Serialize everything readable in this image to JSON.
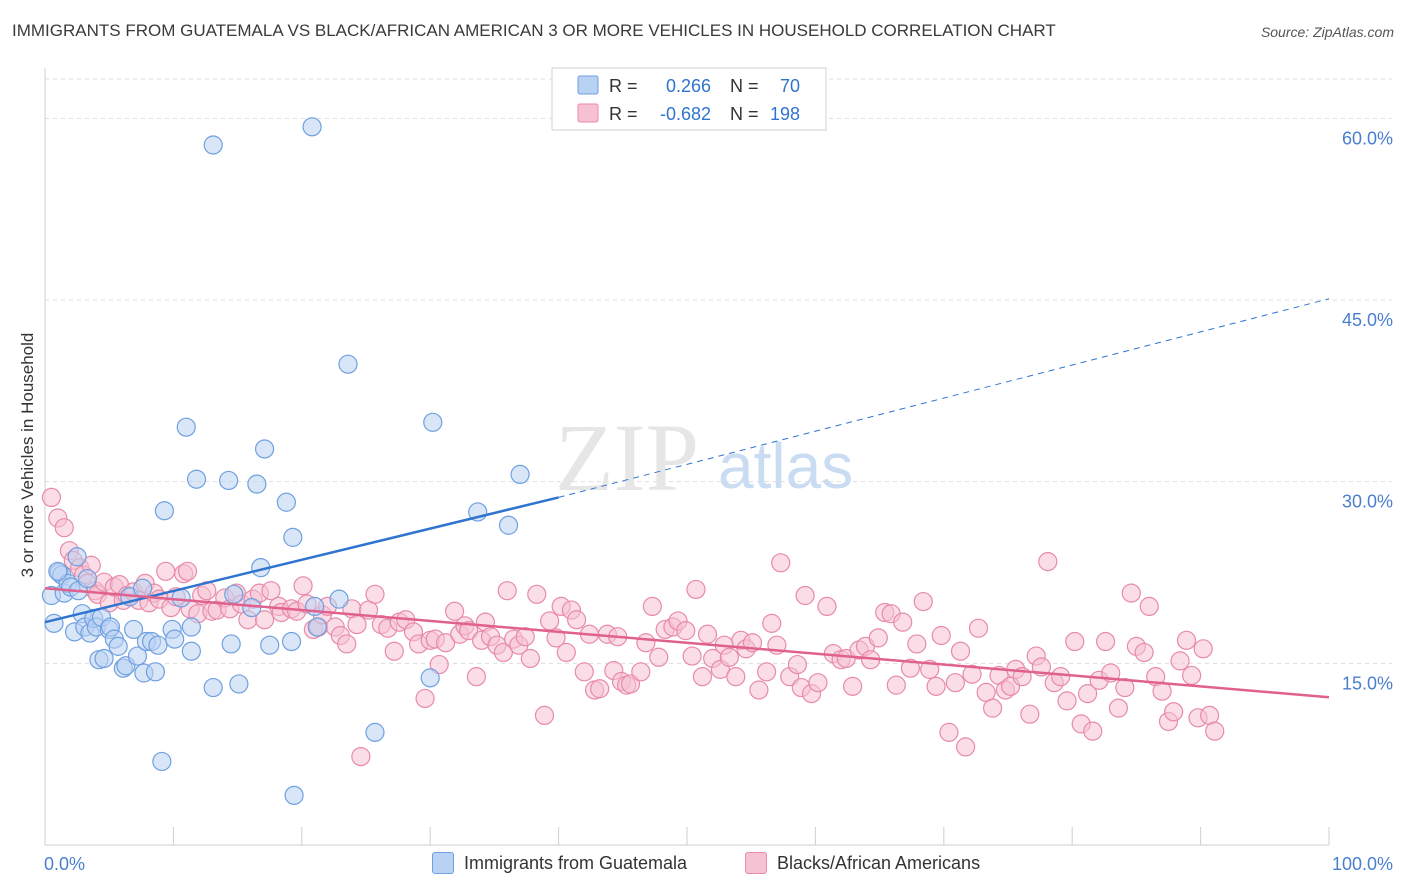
{
  "header": {
    "title": "IMMIGRANTS FROM GUATEMALA VS BLACK/AFRICAN AMERICAN 3 OR MORE VEHICLES IN HOUSEHOLD CORRELATION CHART",
    "source": "Source: ZipAtlas.com"
  },
  "colors": {
    "blue": "#6fa0e0",
    "blue_fill": "#b9d1f3",
    "blue_line": "#2f74cf",
    "pink": "#e88aaa",
    "pink_fill": "#f6c1d3",
    "pink_line": "#e0608e",
    "axis_text": "#4a7fcf",
    "grid": "#dddddd"
  },
  "watermark": {
    "zip": "ZIP",
    "atlas": "atlas"
  },
  "stats_legend": [
    {
      "r_label": "R =",
      "r_value": "0.266",
      "n_label": "N =",
      "n_value": "70"
    },
    {
      "r_label": "R =",
      "r_value": "-0.682",
      "n_label": "N =",
      "n_value": "198"
    }
  ],
  "bottom_legend": [
    {
      "label": "Immigrants from Guatemala"
    },
    {
      "label": "Blacks/African Americans"
    }
  ],
  "chart_data": {
    "type": "scatter",
    "title": "IMMIGRANTS FROM GUATEMALA VS BLACK/AFRICAN AMERICAN 3 OR MORE VEHICLES IN HOUSEHOLD CORRELATION CHART",
    "xlabel": "",
    "ylabel": "3 or more Vehicles in Household",
    "xlim": [
      0,
      100
    ],
    "ylim": [
      0,
      63
    ],
    "x_tick_labels": [
      {
        "value": 0,
        "label": "0.0%"
      },
      {
        "value": 100,
        "label": "100.0%"
      }
    ],
    "y_tick_labels": [
      {
        "value": 15,
        "label": "15.0%"
      },
      {
        "value": 30,
        "label": "30.0%"
      },
      {
        "value": 45,
        "label": "45.0%"
      },
      {
        "value": 60,
        "label": "60.0%"
      }
    ],
    "grid": true,
    "legend_position": "top-center",
    "series": [
      {
        "name": "Immigrants from Guatemala",
        "stats": {
          "R": 0.266,
          "N": 70
        },
        "trend": {
          "x": [
            0,
            40
          ],
          "y": [
            18.4,
            28.7
          ],
          "dashed_to": [
            100,
            45.1
          ]
        },
        "points": [
          [
            0.5,
            20.6
          ],
          [
            0.7,
            18.3
          ],
          [
            1.1,
            22.5
          ],
          [
            1.3,
            22.3
          ],
          [
            1.5,
            20.8
          ],
          [
            1.8,
            21.6
          ],
          [
            2.0,
            21.3
          ],
          [
            2.3,
            17.6
          ],
          [
            2.5,
            23.8
          ],
          [
            2.6,
            21.0
          ],
          [
            2.9,
            19.1
          ],
          [
            3.1,
            18.0
          ],
          [
            3.3,
            22.0
          ],
          [
            3.5,
            17.5
          ],
          [
            3.8,
            18.7
          ],
          [
            4.0,
            18.0
          ],
          [
            4.2,
            15.3
          ],
          [
            4.4,
            18.8
          ],
          [
            4.6,
            15.4
          ],
          [
            5.0,
            17.8
          ],
          [
            5.1,
            18.0
          ],
          [
            5.4,
            17.0
          ],
          [
            5.7,
            16.4
          ],
          [
            6.1,
            14.6
          ],
          [
            6.3,
            14.8
          ],
          [
            6.6,
            20.5
          ],
          [
            6.9,
            17.8
          ],
          [
            7.2,
            15.6
          ],
          [
            7.6,
            21.2
          ],
          [
            7.7,
            14.2
          ],
          [
            7.9,
            16.8
          ],
          [
            8.3,
            16.8
          ],
          [
            8.6,
            14.3
          ],
          [
            8.8,
            16.5
          ],
          [
            9.1,
            6.9
          ],
          [
            9.3,
            27.6
          ],
          [
            9.9,
            17.8
          ],
          [
            10.1,
            17.0
          ],
          [
            10.6,
            20.4
          ],
          [
            11.0,
            34.5
          ],
          [
            11.4,
            16.0
          ],
          [
            11.4,
            18.0
          ],
          [
            11.8,
            30.2
          ],
          [
            13.1,
            57.8
          ],
          [
            14.3,
            30.1
          ],
          [
            14.5,
            16.6
          ],
          [
            14.7,
            20.7
          ],
          [
            15.1,
            13.3
          ],
          [
            16.1,
            19.6
          ],
          [
            16.5,
            29.8
          ],
          [
            16.8,
            22.9
          ],
          [
            17.1,
            32.7
          ],
          [
            17.5,
            16.5
          ],
          [
            18.8,
            28.3
          ],
          [
            19.2,
            16.8
          ],
          [
            19.3,
            25.4
          ],
          [
            19.4,
            4.1
          ],
          [
            20.8,
            59.3
          ],
          [
            21.0,
            19.7
          ],
          [
            21.2,
            18.0
          ],
          [
            22.9,
            20.3
          ],
          [
            23.6,
            39.7
          ],
          [
            25.7,
            9.3
          ],
          [
            30.2,
            34.9
          ],
          [
            30.0,
            13.8
          ],
          [
            33.7,
            27.5
          ],
          [
            36.1,
            26.4
          ],
          [
            37.0,
            30.6
          ],
          [
            1.0,
            22.6
          ],
          [
            13.1,
            13.0
          ]
        ]
      },
      {
        "name": "Blacks/African Americans",
        "stats": {
          "R": -0.682,
          "N": 198
        },
        "trend": {
          "x": [
            0,
            100
          ],
          "y": [
            21.2,
            12.2
          ]
        },
        "points": [
          [
            0.5,
            28.7
          ],
          [
            1.0,
            27.0
          ],
          [
            1.5,
            26.2
          ],
          [
            1.9,
            24.3
          ],
          [
            2.2,
            23.5
          ],
          [
            2.7,
            22.9
          ],
          [
            3.0,
            22.3
          ],
          [
            3.3,
            21.6
          ],
          [
            3.6,
            23.1
          ],
          [
            3.9,
            21.0
          ],
          [
            4.1,
            20.7
          ],
          [
            4.6,
            21.7
          ],
          [
            5.0,
            20.0
          ],
          [
            5.4,
            21.3
          ],
          [
            5.8,
            21.5
          ],
          [
            6.1,
            20.2
          ],
          [
            6.4,
            20.6
          ],
          [
            6.9,
            20.9
          ],
          [
            7.3,
            20.2
          ],
          [
            7.8,
            21.6
          ],
          [
            8.1,
            20.0
          ],
          [
            8.5,
            20.8
          ],
          [
            8.9,
            20.3
          ],
          [
            9.4,
            22.6
          ],
          [
            9.8,
            19.6
          ],
          [
            10.2,
            20.5
          ],
          [
            10.8,
            22.4
          ],
          [
            11.1,
            22.6
          ],
          [
            11.3,
            19.5
          ],
          [
            11.9,
            19.1
          ],
          [
            12.2,
            20.6
          ],
          [
            12.6,
            21.0
          ],
          [
            13.0,
            19.3
          ],
          [
            13.4,
            19.4
          ],
          [
            14.0,
            20.4
          ],
          [
            14.4,
            19.5
          ],
          [
            14.9,
            20.8
          ],
          [
            15.3,
            19.9
          ],
          [
            15.8,
            18.6
          ],
          [
            16.2,
            20.3
          ],
          [
            16.7,
            20.8
          ],
          [
            17.1,
            18.6
          ],
          [
            17.6,
            21.0
          ],
          [
            18.2,
            19.7
          ],
          [
            18.4,
            19.2
          ],
          [
            19.2,
            19.5
          ],
          [
            19.6,
            19.3
          ],
          [
            20.1,
            21.4
          ],
          [
            20.4,
            19.9
          ],
          [
            20.9,
            17.8
          ],
          [
            21.3,
            18.0
          ],
          [
            21.6,
            19.0
          ],
          [
            22.0,
            19.7
          ],
          [
            22.6,
            18.0
          ],
          [
            23.0,
            17.3
          ],
          [
            23.5,
            16.6
          ],
          [
            23.9,
            19.5
          ],
          [
            24.3,
            18.2
          ],
          [
            24.6,
            7.3
          ],
          [
            25.2,
            19.4
          ],
          [
            25.7,
            20.7
          ],
          [
            26.2,
            18.2
          ],
          [
            26.7,
            17.9
          ],
          [
            27.2,
            16.0
          ],
          [
            27.6,
            18.4
          ],
          [
            28.1,
            18.6
          ],
          [
            28.7,
            17.6
          ],
          [
            29.1,
            16.6
          ],
          [
            29.6,
            12.1
          ],
          [
            30.0,
            16.9
          ],
          [
            30.4,
            17.0
          ],
          [
            30.7,
            14.9
          ],
          [
            31.2,
            16.7
          ],
          [
            31.9,
            19.3
          ],
          [
            32.3,
            17.4
          ],
          [
            32.7,
            18.1
          ],
          [
            33.0,
            17.7
          ],
          [
            33.6,
            13.9
          ],
          [
            34.0,
            16.9
          ],
          [
            34.3,
            18.4
          ],
          [
            34.7,
            17.2
          ],
          [
            35.2,
            16.5
          ],
          [
            35.7,
            15.9
          ],
          [
            36.0,
            21.0
          ],
          [
            36.5,
            17.0
          ],
          [
            36.9,
            16.5
          ],
          [
            37.4,
            17.2
          ],
          [
            37.8,
            15.4
          ],
          [
            38.3,
            20.7
          ],
          [
            38.9,
            10.7
          ],
          [
            39.3,
            18.5
          ],
          [
            39.8,
            17.1
          ],
          [
            40.2,
            19.7
          ],
          [
            40.6,
            15.9
          ],
          [
            41.0,
            19.4
          ],
          [
            41.4,
            18.6
          ],
          [
            42.0,
            14.3
          ],
          [
            42.4,
            17.4
          ],
          [
            42.8,
            12.8
          ],
          [
            43.2,
            12.9
          ],
          [
            43.8,
            17.4
          ],
          [
            44.3,
            14.4
          ],
          [
            44.6,
            17.2
          ],
          [
            44.9,
            13.5
          ],
          [
            45.3,
            13.2
          ],
          [
            45.6,
            13.3
          ],
          [
            46.4,
            14.3
          ],
          [
            46.8,
            16.7
          ],
          [
            47.3,
            19.7
          ],
          [
            47.8,
            15.5
          ],
          [
            48.3,
            17.8
          ],
          [
            48.9,
            18.0
          ],
          [
            49.3,
            18.5
          ],
          [
            49.9,
            17.7
          ],
          [
            50.4,
            15.6
          ],
          [
            50.7,
            21.1
          ],
          [
            51.2,
            13.9
          ],
          [
            51.6,
            17.4
          ],
          [
            52.0,
            15.4
          ],
          [
            52.6,
            14.5
          ],
          [
            52.9,
            16.5
          ],
          [
            53.3,
            15.5
          ],
          [
            53.8,
            13.9
          ],
          [
            54.2,
            16.9
          ],
          [
            54.6,
            16.2
          ],
          [
            55.1,
            16.7
          ],
          [
            55.6,
            12.8
          ],
          [
            56.2,
            14.3
          ],
          [
            56.6,
            18.3
          ],
          [
            57.0,
            16.5
          ],
          [
            57.3,
            23.3
          ],
          [
            58.0,
            13.9
          ],
          [
            58.6,
            14.9
          ],
          [
            58.9,
            13.0
          ],
          [
            59.2,
            20.6
          ],
          [
            59.7,
            12.5
          ],
          [
            60.2,
            13.4
          ],
          [
            60.9,
            19.7
          ],
          [
            61.4,
            15.8
          ],
          [
            62.0,
            15.3
          ],
          [
            62.4,
            15.4
          ],
          [
            62.9,
            13.1
          ],
          [
            63.4,
            16.1
          ],
          [
            63.9,
            16.4
          ],
          [
            64.3,
            15.3
          ],
          [
            64.9,
            17.1
          ],
          [
            65.4,
            19.2
          ],
          [
            65.9,
            19.1
          ],
          [
            66.3,
            13.2
          ],
          [
            66.8,
            18.4
          ],
          [
            67.4,
            14.6
          ],
          [
            67.9,
            16.6
          ],
          [
            68.4,
            20.1
          ],
          [
            68.9,
            14.5
          ],
          [
            69.4,
            13.1
          ],
          [
            69.8,
            17.3
          ],
          [
            70.4,
            9.3
          ],
          [
            70.9,
            13.4
          ],
          [
            71.3,
            16.0
          ],
          [
            71.7,
            8.1
          ],
          [
            72.2,
            14.1
          ],
          [
            72.7,
            17.9
          ],
          [
            73.3,
            12.6
          ],
          [
            73.8,
            11.3
          ],
          [
            74.3,
            14.0
          ],
          [
            74.8,
            12.8
          ],
          [
            75.2,
            13.1
          ],
          [
            75.6,
            14.5
          ],
          [
            76.1,
            13.9
          ],
          [
            76.7,
            10.8
          ],
          [
            77.2,
            15.6
          ],
          [
            77.6,
            14.7
          ],
          [
            78.1,
            23.4
          ],
          [
            78.6,
            13.4
          ],
          [
            79.1,
            13.9
          ],
          [
            79.6,
            11.9
          ],
          [
            80.2,
            16.8
          ],
          [
            80.7,
            10.0
          ],
          [
            81.2,
            12.5
          ],
          [
            81.6,
            9.4
          ],
          [
            82.1,
            13.6
          ],
          [
            82.6,
            16.8
          ],
          [
            83.0,
            14.2
          ],
          [
            83.6,
            11.3
          ],
          [
            84.1,
            13.0
          ],
          [
            84.6,
            20.8
          ],
          [
            85.0,
            16.4
          ],
          [
            85.6,
            15.9
          ],
          [
            86.0,
            19.7
          ],
          [
            86.5,
            13.9
          ],
          [
            87.0,
            12.7
          ],
          [
            87.5,
            10.2
          ],
          [
            87.9,
            11.0
          ],
          [
            88.4,
            15.2
          ],
          [
            88.9,
            16.9
          ],
          [
            89.3,
            14.0
          ],
          [
            89.8,
            10.5
          ],
          [
            90.2,
            16.2
          ],
          [
            90.7,
            10.7
          ],
          [
            91.1,
            9.4
          ]
        ]
      }
    ]
  },
  "axes": {
    "ylabel": "3 or more Vehicles in Household",
    "x_min_label": "0.0%",
    "x_max_label": "100.0%"
  }
}
